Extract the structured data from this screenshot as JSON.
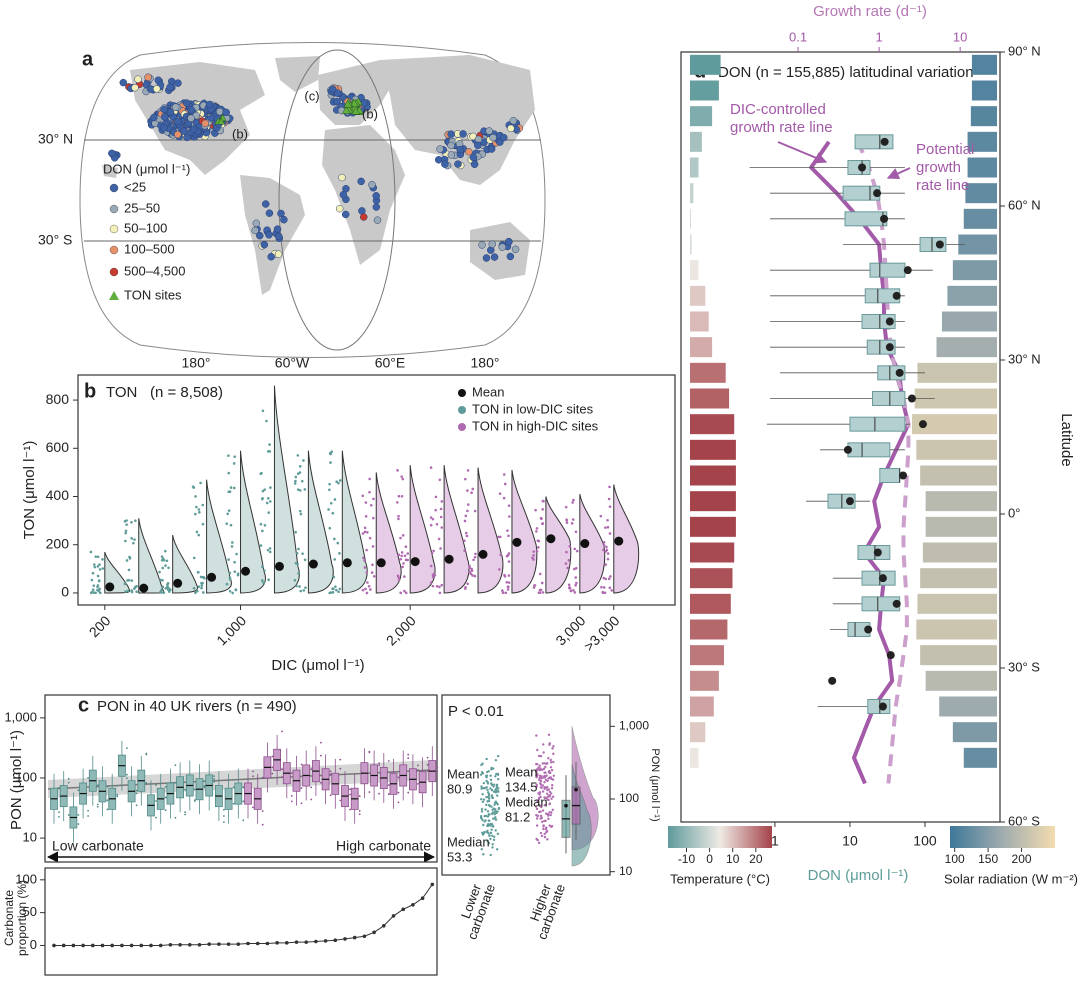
{
  "chart_data": [
    {
      "type": "map",
      "label": "a",
      "lat_labels": [
        "30° N",
        "30° S"
      ],
      "lon_labels": [
        "180°",
        "60°W",
        "60°E",
        "180°"
      ],
      "legend_title": "DON (μmol l⁻¹)",
      "legend": [
        {
          "name": "<25",
          "color": "#3d62a6"
        },
        {
          "name": "25–50",
          "color": "#9aa9b6"
        },
        {
          "name": "50–100",
          "color": "#f2f0b8"
        },
        {
          "name": "100–500",
          "color": "#e5916a"
        },
        {
          "name": "500–4,500",
          "color": "#c83a2e"
        },
        {
          "name": "TON sites",
          "color": "#5fae3e"
        }
      ],
      "annotations": [
        "(c)",
        "(b)",
        "(b)"
      ]
    },
    {
      "type": "violin",
      "label": "b",
      "title": "TON",
      "subtitle": "(n = 8,508)",
      "xlabel": "DIC (μmol l⁻¹)",
      "ylabel": "TON (μmol l⁻¹)",
      "xlim": [
        42,
        3561
      ],
      "xticks": [
        200,
        {
          "value": 1000,
          "label": "1,000"
        },
        {
          "value": 2000,
          "label": "2,000"
        },
        {
          "value": 3000,
          "label": "3,000"
        },
        {
          "value": 3200,
          "label": ">3,000"
        }
      ],
      "ylim": [
        -50,
        904
      ],
      "yticks": [
        0,
        200,
        400,
        600,
        800
      ],
      "mean_name": "Mean",
      "mean_color": "#111111",
      "series": [
        {
          "name": "TON in low-DIC sites",
          "color": "#5e9c99",
          "fill": "#cfe0de",
          "x": [
            200,
            400,
            600,
            800,
            1000,
            1200,
            1400,
            1600
          ],
          "values": [
            25,
            20,
            40,
            65,
            90,
            110,
            120,
            125
          ],
          "max": [
            170,
            310,
            240,
            470,
            590,
            860,
            590,
            590
          ]
        },
        {
          "name": "TON in high-DIC sites",
          "color": "#b06bb0",
          "fill": "#e6cce6",
          "x": [
            1800,
            2000,
            2200,
            2400,
            2600,
            2800,
            3000,
            3200
          ],
          "values": [
            125,
            130,
            140,
            160,
            210,
            225,
            205,
            215
          ],
          "max": [
            500,
            530,
            530,
            520,
            510,
            400,
            410,
            450
          ]
        }
      ]
    },
    {
      "type": "box",
      "label": "c",
      "title": "PON in 40 UK rivers (n = 490)",
      "ylabel": "PON (μmol l⁻¹)",
      "log": true,
      "ylim": [
        4,
        2400
      ],
      "yticks": [
        10,
        100,
        {
          "value": 1000,
          "label": "1,000"
        }
      ],
      "annotations": [
        "Low carbonate",
        "High carbonate"
      ],
      "groups": [
        {
          "color": "#4f8a87",
          "fill": "#8fb9b6",
          "values": [
            45,
            50,
            22,
            55,
            90,
            60,
            45,
            160,
            60,
            90,
            35,
            45,
            55,
            70,
            75,
            65,
            75,
            50,
            45,
            55
          ]
        },
        {
          "color": "#8d4f8d",
          "fill": "#c79ac7",
          "values": [
            55,
            45,
            150,
            200,
            120,
            90,
            110,
            130,
            95,
            80,
            50,
            45,
            120,
            110,
            100,
            80,
            110,
            95,
            85,
            130
          ]
        }
      ]
    },
    {
      "type": "line",
      "ylabel": [
        "Carbonate",
        "proportion (%)"
      ],
      "ylim": [
        -45,
        118
      ],
      "yticks": [
        0,
        50,
        100
      ],
      "color": "#333333",
      "values": [
        0,
        0,
        0,
        0,
        0,
        0,
        0,
        0,
        0,
        0,
        0,
        0,
        1,
        1,
        1,
        1,
        2,
        2,
        2,
        2,
        3,
        3,
        3,
        4,
        4,
        5,
        5,
        6,
        7,
        8,
        10,
        12,
        14,
        20,
        30,
        45,
        55,
        62,
        72,
        93
      ]
    },
    {
      "type": "halfviolin",
      "annotation": "P < 0.01",
      "ylabel": "PON (μmol l⁻¹)",
      "log": true,
      "ylim": [
        9,
        2700
      ],
      "yticks": [
        10,
        100,
        {
          "value": 1000,
          "label": "1,000"
        }
      ],
      "categories": [
        [
          "Lower",
          "carbonate"
        ],
        [
          "Higher",
          "carbonate"
        ]
      ],
      "mean_label": "Mean",
      "median_label": "Median",
      "means": [
        80.9,
        134.5
      ],
      "medians": [
        53.3,
        81.2
      ],
      "colors": [
        "#5e9c99",
        "#b06bb0"
      ]
    },
    {
      "type": "latbox",
      "label": "d",
      "title": "DON (n = 155,885) latitudinal variation",
      "xlabel": "DON (μmol l⁻¹)",
      "xlim": [
        0.056,
        1000
      ],
      "xticks": [
        1,
        10,
        100
      ],
      "x2label": "Growth rate (d⁻¹)",
      "x2lim": [
        0.0036,
        31
      ],
      "x2ticks": [
        0.1,
        1,
        10
      ],
      "ylabel": "Latitude",
      "ylim": [
        -60,
        90
      ],
      "yticks": [
        {
          "value": 90,
          "label": "90° N"
        },
        {
          "value": 60,
          "label": "60° N"
        },
        {
          "value": 30,
          "label": "30° N"
        },
        {
          "value": 0,
          "label": "0°"
        },
        {
          "value": -30,
          "label": "30° S"
        },
        {
          "value": -60,
          "label": "60° S"
        }
      ],
      "box_color": "#6a9a9a",
      "box_fill": "#b3cfcf",
      "mean_color": "#222222",
      "boxes": {
        "lat": [
          72.5,
          67.5,
          62.5,
          57.5,
          52.5,
          47.5,
          42.5,
          37.5,
          32.5,
          27.5,
          22.5,
          17.5,
          12.5,
          7.5,
          2.5,
          -7.5,
          -12.5,
          -17.5,
          -22.5,
          -27.5,
          -32.5,
          -37.5
        ],
        "whisker_low": [
          11.7,
          0.46,
          0.86,
          0.86,
          8.1,
          0.86,
          0.86,
          0.86,
          0.86,
          1.17,
          0.86,
          0.78,
          4,
          25,
          2.6,
          12.8,
          5.9,
          5.9,
          5.4,
          32,
          null,
          3.7
        ],
        "q1": [
          11.7,
          9.4,
          8.1,
          8.6,
          86,
          18.5,
          16,
          14.5,
          17,
          23.5,
          20,
          10,
          9.4,
          25,
          5.1,
          12.8,
          14.5,
          14.5,
          9.4,
          null,
          null,
          17.3
        ],
        "median": [
          25,
          14.5,
          18.5,
          27.5,
          124,
          25,
          23.5,
          25,
          25,
          34,
          34,
          21.5,
          14.5,
          46,
          7.8,
          21.5,
          25,
          23.5,
          11.7,
          null,
          null,
          25
        ],
        "q3": [
          37.4,
          18.5,
          25,
          31,
          190,
          54,
          46,
          40,
          40,
          54,
          54,
          54,
          34,
          46,
          11.7,
          34,
          40,
          46,
          18.5,
          null,
          null,
          34
        ],
        "whisker_high": [
          37.4,
          54,
          54,
          54,
          340,
          127,
          54,
          54,
          54,
          100,
          135,
          63,
          54,
          54,
          18.5,
          34,
          40,
          46,
          18.5,
          37,
          null,
          34
        ],
        "mean": [
          29,
          14.5,
          23,
          28.5,
          158,
          59,
          42,
          34,
          34,
          46,
          67,
          94,
          9.4,
          51,
          10,
          23.5,
          27.5,
          42,
          17.5,
          35,
          5.8,
          27.5
        ]
      },
      "lines": [
        {
          "name": [
            "DIC-controlled",
            "growth rate line"
          ],
          "color": "#a35aa8",
          "dash": false,
          "lat": [
            72.5,
            67.5,
            62.5,
            57.5,
            52.5,
            47.5,
            42.5,
            37.5,
            32.5,
            27.5,
            22.5,
            17.5,
            12.5,
            7.5,
            2.5,
            -2.5,
            -7.5,
            -12.5,
            -17.5,
            -22.5,
            -27.5,
            -32.5,
            -37.5,
            -42.5,
            -47.5,
            -52.5
          ],
          "values": [
            0.24,
            0.145,
            0.3,
            0.57,
            1.0,
            1.06,
            1.15,
            1.15,
            1.25,
            1.77,
            1.92,
            2.3,
            1.62,
            1.15,
            0.87,
            1.0,
            0.65,
            1.15,
            1.06,
            1.0,
            1.33,
            1.45,
            0.87,
            0.65,
            0.49,
            0.67
          ]
        },
        {
          "name": [
            "Potential",
            "growth",
            "rate line"
          ],
          "color": "#cc9fcc",
          "dash": true,
          "lat": [
            72.5,
            67.5,
            62.5,
            57.5,
            52.5,
            47.5,
            42.5,
            37.5,
            32.5,
            27.5,
            22.5,
            17.5,
            12.5,
            7.5,
            2.5,
            -2.5,
            -7.5,
            -12.5,
            -17.5,
            -22.5,
            -27.5,
            -32.5,
            -37.5,
            -42.5,
            -47.5,
            -52.5
          ],
          "values": [
            0.55,
            0.75,
            0.94,
            1.06,
            1.15,
            1.2,
            1.25,
            1.3,
            1.4,
            1.6,
            2.0,
            2.3,
            2.3,
            2.2,
            2.1,
            2.0,
            2.0,
            2.1,
            2.2,
            2.2,
            2.0,
            1.8,
            1.6,
            1.5,
            1.4,
            1.3
          ]
        }
      ],
      "temperature": {
        "label": "Temperature (°C)",
        "ticks": [
          -10,
          0,
          10,
          20
        ],
        "lim": [
          -18,
          27
        ],
        "colors": [
          "#5f9a9c",
          "#eeeae4",
          "#a5434a"
        ],
        "lat": [
          87.5,
          82.5,
          77.5,
          72.5,
          67.5,
          62.5,
          57.5,
          52.5,
          47.5,
          42.5,
          37.5,
          32.5,
          27.5,
          22.5,
          17.5,
          12.5,
          7.5,
          2.5,
          -2.5,
          -7.5,
          -12.5,
          -17.5,
          -22.5,
          -27.5,
          -32.5,
          -37.5,
          -42.5,
          -47.5
        ],
        "values": [
          -18,
          -17,
          -13,
          -7,
          -5,
          -2,
          -0.5,
          1,
          5,
          9,
          11,
          13,
          21,
          23,
          26,
          27,
          27,
          27,
          27,
          26,
          25,
          24,
          22,
          20,
          17,
          14,
          9,
          5
        ]
      },
      "solar": {
        "label": "Solar radiation (W m⁻²)",
        "ticks": [
          100,
          150,
          200
        ],
        "lim": [
          93,
          250
        ],
        "colors": [
          "#3e7899",
          "#a0acae",
          "#f3dcb0"
        ],
        "values": [
          110,
          110,
          112,
          118,
          118,
          122,
          125,
          135,
          145,
          155,
          165,
          175,
          210,
          215,
          220,
          212,
          205,
          195,
          195,
          200,
          205,
          210,
          212,
          205,
          195,
          170,
          145,
          125
        ]
      }
    }
  ]
}
